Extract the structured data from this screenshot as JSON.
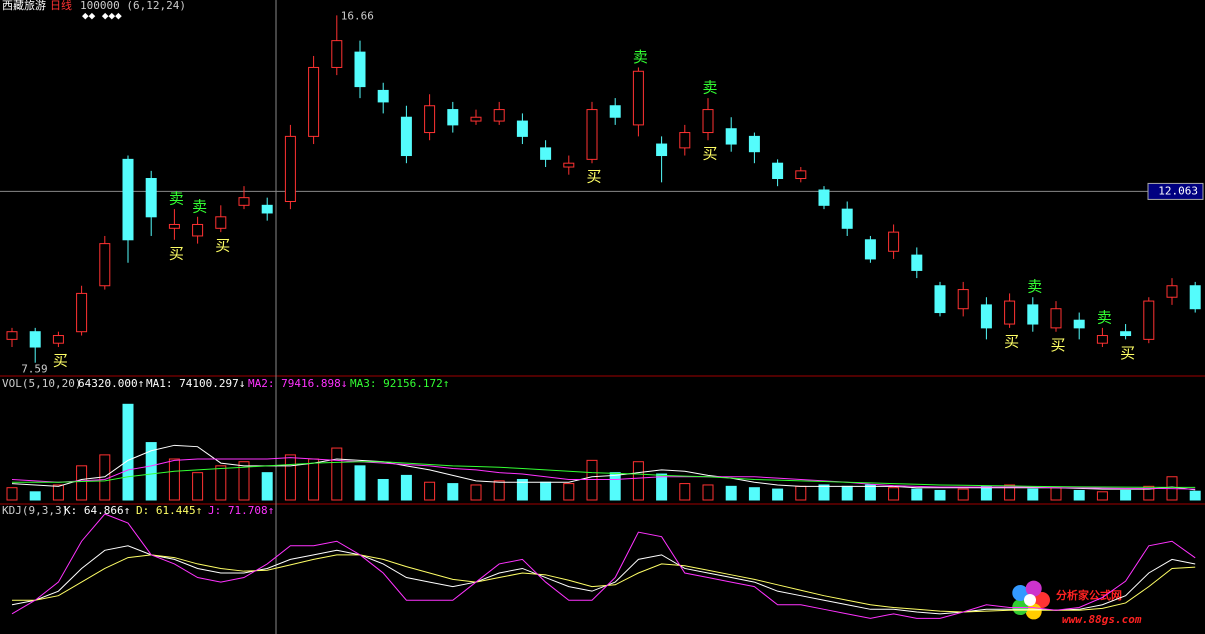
{
  "chart_data": [
    {
      "type": "candlestick",
      "title": "西藏旅游",
      "subtitle": "日线",
      "params": "100000 (6,12,24)",
      "open": [
        8.2,
        8.4,
        8.1,
        8.4,
        9.6,
        12.9,
        12.4,
        11.1,
        10.9,
        11.1,
        11.7,
        11.7,
        11.8,
        13.5,
        15.3,
        15.7,
        14.7,
        14.0,
        13.6,
        14.2,
        13.9,
        13.9,
        13.9,
        13.2,
        12.7,
        12.9,
        14.3,
        13.8,
        13.3,
        13.2,
        13.6,
        13.7,
        13.5,
        12.8,
        12.4,
        12.1,
        11.6,
        10.8,
        10.5,
        10.4,
        9.6,
        9.0,
        9.1,
        8.6,
        9.1,
        8.5,
        8.7,
        8.1,
        8.4,
        8.2,
        9.3,
        9.6
      ],
      "high": [
        8.5,
        8.5,
        8.4,
        9.6,
        10.9,
        13.0,
        12.6,
        11.6,
        11.4,
        11.7,
        12.2,
        11.9,
        13.8,
        15.6,
        16.66,
        16.0,
        14.9,
        14.3,
        14.6,
        14.4,
        14.2,
        14.4,
        14.1,
        13.4,
        13.0,
        14.4,
        14.5,
        15.3,
        13.5,
        13.8,
        14.5,
        14.0,
        13.6,
        12.9,
        12.7,
        12.2,
        11.8,
        10.9,
        11.2,
        10.6,
        9.7,
        9.7,
        9.3,
        9.4,
        9.3,
        9.2,
        8.9,
        8.5,
        8.6,
        9.3,
        9.8,
        9.7
      ],
      "low": [
        8.0,
        7.59,
        8.0,
        8.3,
        9.5,
        10.2,
        10.9,
        10.8,
        10.7,
        11.0,
        11.6,
        11.3,
        11.6,
        13.3,
        15.1,
        14.5,
        14.1,
        12.8,
        13.4,
        13.6,
        13.8,
        13.8,
        13.3,
        12.7,
        12.5,
        12.8,
        13.8,
        13.5,
        12.3,
        13.0,
        13.4,
        13.1,
        12.8,
        12.2,
        12.3,
        11.6,
        10.9,
        10.2,
        10.3,
        9.8,
        8.8,
        8.8,
        8.2,
        8.5,
        8.4,
        8.4,
        8.2,
        8.0,
        8.2,
        8.1,
        9.1,
        8.9
      ],
      "close": [
        8.4,
        8.0,
        8.3,
        9.4,
        10.7,
        10.8,
        11.4,
        11.2,
        11.2,
        11.4,
        11.9,
        11.5,
        13.5,
        15.3,
        16.0,
        14.8,
        14.4,
        13.0,
        14.3,
        13.8,
        14.0,
        14.2,
        13.5,
        12.9,
        12.8,
        14.2,
        14.0,
        15.2,
        13.0,
        13.6,
        14.2,
        13.3,
        13.1,
        12.4,
        12.6,
        11.7,
        11.1,
        10.3,
        11.0,
        10.0,
        8.9,
        9.5,
        8.5,
        9.2,
        8.6,
        9.0,
        8.5,
        8.3,
        8.3,
        9.2,
        9.6,
        9.0
      ],
      "up_color": "#ff3232",
      "down_color": "#54fcfc",
      "ylim": [
        7.4,
        16.8
      ],
      "cursor_price": 12.063,
      "sell_label": "卖",
      "buy_label": "买",
      "sell_signals": [
        7,
        8,
        27,
        30,
        44,
        47
      ],
      "buy_signals": [
        2,
        7,
        9,
        25,
        30,
        43,
        45,
        48
      ],
      "watermark": {
        "title": "分析家公式网",
        "url": "www.88gs.com"
      }
    },
    {
      "type": "bar",
      "title": "VOL(5,10,20)",
      "current_label": "64320.000↑",
      "values": [
        90000,
        60000,
        110000,
        250000,
        330000,
        700000,
        420000,
        300000,
        200000,
        250000,
        280000,
        200000,
        330000,
        300000,
        380000,
        250000,
        150000,
        180000,
        130000,
        120000,
        110000,
        140000,
        150000,
        130000,
        120000,
        290000,
        200000,
        280000,
        190000,
        120000,
        110000,
        100000,
        90000,
        80000,
        100000,
        110000,
        100000,
        110000,
        90000,
        80000,
        70000,
        80000,
        100000,
        110000,
        80000,
        90000,
        70000,
        60000,
        70000,
        100000,
        170000,
        64320
      ],
      "ylim": [
        0,
        790000
      ],
      "series": [
        {
          "name": "MA1",
          "label": "MA1: 74100.297↓",
          "color": "#ffffff",
          "values": [
            120000,
            110000,
            100000,
            150000,
            170000,
            290000,
            360000,
            400000,
            390000,
            270000,
            250000,
            250000,
            250000,
            270000,
            300000,
            290000,
            280000,
            250000,
            220000,
            180000,
            140000,
            130000,
            130000,
            130000,
            130000,
            170000,
            180000,
            200000,
            220000,
            210000,
            180000,
            160000,
            130000,
            110000,
            100000,
            100000,
            100000,
            100000,
            100000,
            90000,
            90000,
            90000,
            90000,
            90000,
            90000,
            90000,
            85000,
            80000,
            80000,
            80000,
            95000,
            74100.297
          ]
        },
        {
          "name": "MA2",
          "label": "MA2: 79416.898↓",
          "color": "#ff33ff",
          "values": [
            150000,
            140000,
            130000,
            140000,
            150000,
            220000,
            250000,
            290000,
            300000,
            300000,
            300000,
            300000,
            310000,
            300000,
            290000,
            280000,
            270000,
            260000,
            250000,
            230000,
            220000,
            200000,
            190000,
            170000,
            150000,
            150000,
            150000,
            160000,
            170000,
            170000,
            170000,
            170000,
            170000,
            160000,
            150000,
            140000,
            130000,
            115000,
            105000,
            100000,
            95000,
            95000,
            95000,
            95000,
            95000,
            90000,
            90000,
            87000,
            85000,
            85000,
            83000,
            79416.898
          ]
        },
        {
          "name": "MA3",
          "label": "MA3: 92156.172↑",
          "color": "#33ff33",
          "values": [
            130000,
            130000,
            130000,
            135000,
            140000,
            170000,
            190000,
            210000,
            220000,
            230000,
            240000,
            250000,
            260000,
            270000,
            275000,
            280000,
            280000,
            270000,
            260000,
            250000,
            245000,
            240000,
            230000,
            220000,
            210000,
            200000,
            195000,
            190000,
            180000,
            175000,
            170000,
            160000,
            150000,
            145000,
            140000,
            135000,
            130000,
            125000,
            120000,
            115000,
            110000,
            108000,
            105000,
            103000,
            100000,
            98000,
            96000,
            95000,
            94000,
            93000,
            92500,
            92156.172
          ]
        }
      ]
    },
    {
      "type": "line",
      "title": "KDJ(9,3,3)",
      "ylim": [
        -10,
        120
      ],
      "series": [
        {
          "name": "K",
          "label": "K: 64.866↑",
          "color": "#ffffff",
          "values": [
            20,
            25,
            35,
            60,
            80,
            85,
            75,
            70,
            60,
            55,
            55,
            60,
            70,
            75,
            80,
            75,
            65,
            50,
            45,
            40,
            45,
            55,
            60,
            50,
            40,
            35,
            45,
            70,
            75,
            60,
            55,
            50,
            45,
            35,
            30,
            25,
            20,
            15,
            15,
            12,
            10,
            12,
            15,
            15,
            15,
            14,
            15,
            20,
            30,
            55,
            70,
            64.866
          ]
        },
        {
          "name": "D",
          "label": "D: 61.445↑",
          "color": "#ffff66",
          "values": [
            25,
            25,
            30,
            45,
            60,
            72,
            75,
            72,
            65,
            60,
            57,
            58,
            64,
            70,
            75,
            75,
            70,
            62,
            55,
            48,
            45,
            50,
            55,
            53,
            47,
            40,
            42,
            55,
            65,
            63,
            58,
            53,
            48,
            42,
            36,
            30,
            25,
            20,
            17,
            15,
            13,
            12,
            13,
            14,
            14,
            14,
            14,
            16,
            22,
            40,
            60,
            61.445
          ]
        },
        {
          "name": "J",
          "label": "J: 71.708↑",
          "color": "#ff33ff",
          "values": [
            10,
            25,
            45,
            90,
            120,
            110,
            75,
            65,
            50,
            45,
            50,
            65,
            85,
            85,
            90,
            75,
            55,
            25,
            25,
            25,
            45,
            65,
            70,
            45,
            25,
            25,
            50,
            100,
            95,
            55,
            50,
            45,
            40,
            20,
            20,
            15,
            10,
            5,
            10,
            5,
            5,
            12,
            20,
            17,
            17,
            14,
            17,
            28,
            46,
            85,
            90,
            71.708
          ]
        }
      ]
    }
  ]
}
